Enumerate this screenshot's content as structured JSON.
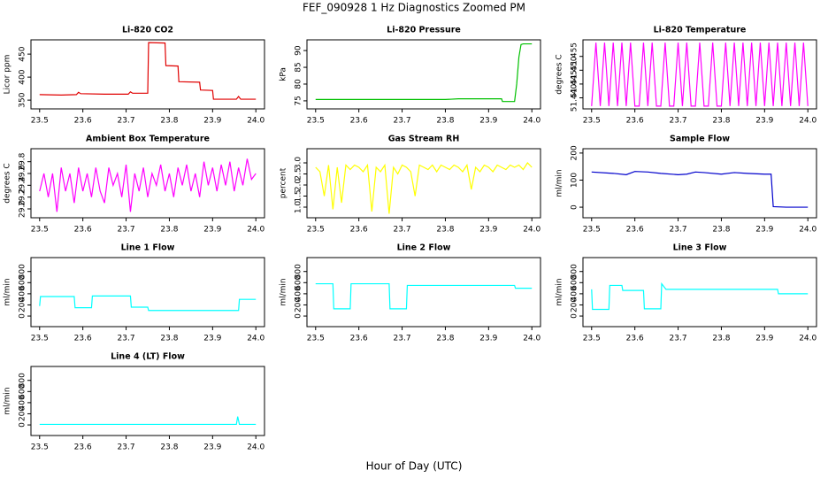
{
  "title": "FEF_090928  1 Hz Diagnostics Zoomed PM",
  "xlabel": "Hour of Day (UTC)",
  "chart_data": [
    {
      "type": "line",
      "title": "Li-820 CO2",
      "ylabel": "Licor ppm",
      "color": "#e00000",
      "x": [
        23.5,
        23.55,
        23.585,
        23.59,
        23.595,
        23.65,
        23.705,
        23.71,
        23.715,
        23.75,
        23.752,
        23.79,
        23.792,
        23.82,
        23.822,
        23.87,
        23.872,
        23.9,
        23.902,
        23.955,
        23.96,
        23.965,
        24.0
      ],
      "values": [
        362,
        361,
        362,
        367,
        364,
        363,
        363,
        368,
        365,
        365,
        475,
        474,
        425,
        424,
        390,
        389,
        372,
        371,
        352,
        352,
        358,
        352,
        352
      ],
      "xlim": [
        23.48,
        24.02
      ],
      "xticks": [
        23.5,
        23.6,
        23.7,
        23.8,
        23.9,
        {
          "value": 24,
          "label": "24.0"
        }
      ],
      "ylim": [
        331,
        481
      ],
      "yticks": [
        350,
        400,
        450
      ]
    },
    {
      "type": "line",
      "title": "Li-820 Pressure",
      "ylabel": "kPa",
      "color": "#00c000",
      "x": [
        23.5,
        23.6,
        23.7,
        23.8,
        23.83,
        23.93,
        23.932,
        23.96,
        23.965,
        23.97,
        23.975,
        23.98,
        24.0
      ],
      "values": [
        75.4,
        75.4,
        75.4,
        75.4,
        75.6,
        75.6,
        74.8,
        74.8,
        80,
        88,
        91.8,
        92,
        92
      ],
      "xlim": [
        23.48,
        24.02
      ],
      "xticks": [
        23.5,
        23.6,
        23.7,
        23.8,
        23.9,
        {
          "value": 24,
          "label": "24.0"
        }
      ],
      "ylim": [
        72.6,
        93.2
      ],
      "yticks": [
        75,
        80,
        85,
        90
      ]
    },
    {
      "type": "line",
      "title": "Li-820 Temperature",
      "ylabel": "degrees C",
      "color": "#ff00ff",
      "x": [
        23.5,
        23.51,
        23.52,
        23.53,
        23.54,
        23.55,
        23.56,
        23.57,
        23.58,
        23.59,
        23.6,
        23.61,
        23.62,
        23.63,
        23.64,
        23.65,
        23.66,
        23.67,
        23.68,
        23.69,
        23.7,
        23.71,
        23.72,
        23.73,
        23.74,
        23.75,
        23.76,
        23.77,
        23.78,
        23.79,
        23.8,
        23.81,
        23.82,
        23.83,
        23.84,
        23.85,
        23.86,
        23.87,
        23.88,
        23.89,
        23.9,
        23.91,
        23.92,
        23.93,
        23.94,
        23.95,
        23.96,
        23.97,
        23.98,
        23.99,
        24.0
      ],
      "values": [
        51.437,
        51.46,
        51.437,
        51.46,
        51.437,
        51.46,
        51.437,
        51.46,
        51.437,
        51.46,
        51.437,
        51.437,
        51.46,
        51.437,
        51.46,
        51.437,
        51.437,
        51.46,
        51.437,
        51.437,
        51.46,
        51.437,
        51.46,
        51.437,
        51.437,
        51.46,
        51.437,
        51.437,
        51.46,
        51.437,
        51.437,
        51.46,
        51.437,
        51.46,
        51.437,
        51.46,
        51.437,
        51.46,
        51.437,
        51.46,
        51.437,
        51.46,
        51.437,
        51.46,
        51.437,
        51.46,
        51.437,
        51.46,
        51.437,
        51.46,
        51.437
      ],
      "xlim": [
        23.48,
        24.02
      ],
      "xticks": [
        23.5,
        23.6,
        23.7,
        23.8,
        23.9,
        {
          "value": 24,
          "label": "24.0"
        }
      ],
      "ylim": [
        51.436,
        51.461
      ],
      "yticks": [
        {
          "value": 51.44,
          "label": "51.440"
        },
        {
          "value": 51.445,
          "label": "51.445"
        },
        {
          "value": 51.45,
          "label": "51.450"
        },
        {
          "value": 51.455,
          "label": "51.455"
        }
      ]
    },
    {
      "type": "line",
      "title": "Ambient Box Temperature",
      "ylabel": "degrees C",
      "color": "#ff00ff",
      "x": [
        23.5,
        23.51,
        23.52,
        23.53,
        23.54,
        23.55,
        23.56,
        23.57,
        23.58,
        23.59,
        23.6,
        23.61,
        23.62,
        23.63,
        23.64,
        23.65,
        23.66,
        23.67,
        23.68,
        23.69,
        23.7,
        23.71,
        23.72,
        23.73,
        23.74,
        23.75,
        23.76,
        23.77,
        23.78,
        23.79,
        23.8,
        23.81,
        23.82,
        23.83,
        23.84,
        23.85,
        23.86,
        23.87,
        23.88,
        23.89,
        23.9,
        23.91,
        23.92,
        23.93,
        23.94,
        23.95,
        23.96,
        23.97,
        23.98,
        23.99,
        24.0
      ],
      "values": [
        29.3,
        29.6,
        29.2,
        29.6,
        28.95,
        29.7,
        29.3,
        29.6,
        29.1,
        29.7,
        29.3,
        29.6,
        29.2,
        29.7,
        29.3,
        29.1,
        29.7,
        29.4,
        29.6,
        29.2,
        29.75,
        28.95,
        29.6,
        29.3,
        29.7,
        29.2,
        29.6,
        29.4,
        29.75,
        29.3,
        29.6,
        29.2,
        29.7,
        29.4,
        29.75,
        29.3,
        29.6,
        29.2,
        29.8,
        29.4,
        29.7,
        29.3,
        29.75,
        29.4,
        29.8,
        29.3,
        29.7,
        29.4,
        29.85,
        29.5,
        29.6
      ],
      "xlim": [
        23.48,
        24.02
      ],
      "xticks": [
        23.5,
        23.6,
        23.7,
        23.8,
        23.9,
        {
          "value": 24,
          "label": "24.0"
        }
      ],
      "ylim": [
        28.85,
        30.02
      ],
      "yticks": [
        {
          "value": 29,
          "label": "29.0"
        },
        29.2,
        29.4,
        29.6,
        29.8
      ]
    },
    {
      "type": "line",
      "title": "Gas Stream RH",
      "ylabel": "percent",
      "color": "#ffff00",
      "x": [
        23.5,
        23.51,
        23.52,
        23.53,
        23.54,
        23.55,
        23.56,
        23.57,
        23.58,
        23.59,
        23.6,
        23.61,
        23.62,
        23.63,
        23.64,
        23.65,
        23.66,
        23.67,
        23.68,
        23.69,
        23.7,
        23.71,
        23.72,
        23.73,
        23.74,
        23.75,
        23.76,
        23.77,
        23.78,
        23.79,
        23.8,
        23.81,
        23.82,
        23.83,
        23.84,
        23.85,
        23.86,
        23.87,
        23.88,
        23.89,
        23.9,
        23.91,
        23.92,
        23.93,
        23.94,
        23.95,
        23.96,
        23.97,
        23.98,
        23.99,
        24.0
      ],
      "values": [
        2.8,
        2.6,
        1.5,
        2.9,
        0.9,
        2.8,
        1.2,
        2.9,
        2.7,
        2.9,
        2.8,
        2.6,
        2.9,
        0.8,
        2.8,
        2.6,
        2.9,
        0.7,
        2.8,
        2.5,
        2.9,
        2.8,
        2.6,
        1.5,
        2.9,
        2.8,
        2.7,
        2.9,
        2.6,
        2.9,
        2.8,
        2.7,
        2.9,
        2.8,
        2.6,
        2.9,
        1.8,
        2.8,
        2.6,
        2.9,
        2.8,
        2.6,
        2.9,
        2.8,
        2.7,
        2.9,
        2.8,
        2.9,
        2.7,
        3.0,
        2.8
      ],
      "xlim": [
        23.48,
        24.02
      ],
      "xticks": [
        23.5,
        23.6,
        23.7,
        23.8,
        23.9,
        {
          "value": 24,
          "label": "24.0"
        }
      ],
      "ylim": [
        0.52,
        3.64
      ],
      "yticks": [
        {
          "value": 1,
          "label": "1.0"
        },
        1.5,
        {
          "value": 2,
          "label": "2.0"
        },
        2.5,
        {
          "value": 3,
          "label": "3.0"
        }
      ]
    },
    {
      "type": "line",
      "title": "Sample Flow",
      "ylabel": "ml/min",
      "color": "#0000cc",
      "x": [
        23.5,
        23.55,
        23.58,
        23.6,
        23.63,
        23.66,
        23.7,
        23.72,
        23.74,
        23.76,
        23.8,
        23.83,
        23.86,
        23.9,
        23.915,
        23.92,
        23.95,
        24.0
      ],
      "values": [
        130,
        125,
        120,
        132,
        130,
        125,
        120,
        122,
        130,
        128,
        122,
        128,
        125,
        122,
        122,
        2,
        0,
        0
      ],
      "xlim": [
        23.48,
        24.02
      ],
      "xticks": [
        23.5,
        23.6,
        23.7,
        23.8,
        23.9,
        {
          "value": 24,
          "label": "24.0"
        }
      ],
      "ylim": [
        -39,
        216
      ],
      "yticks": [
        0,
        100,
        200
      ]
    },
    {
      "type": "line",
      "title": "Line 1 Flow",
      "ylabel": "ml/min",
      "color": "#00ffff",
      "x": [
        23.5,
        23.502,
        23.58,
        23.582,
        23.62,
        23.622,
        23.71,
        23.712,
        23.75,
        23.752,
        23.96,
        23.962,
        24.0
      ],
      "values": [
        180,
        350,
        350,
        150,
        150,
        360,
        360,
        160,
        160,
        100,
        100,
        300,
        300
      ],
      "xlim": [
        23.48,
        24.02
      ],
      "xticks": [
        23.5,
        23.6,
        23.7,
        23.8,
        23.9,
        {
          "value": 24,
          "label": "24.0"
        }
      ],
      "ylim": [
        -190,
        1050
      ],
      "yticks": [
        0,
        200,
        400,
        600,
        800
      ]
    },
    {
      "type": "line",
      "title": "Line 2 Flow",
      "ylabel": "ml/min",
      "color": "#00ffff",
      "x": [
        23.5,
        23.54,
        23.542,
        23.58,
        23.582,
        23.67,
        23.672,
        23.71,
        23.712,
        23.96,
        23.962,
        24.0
      ],
      "values": [
        580,
        580,
        130,
        130,
        580,
        580,
        130,
        130,
        550,
        550,
        500,
        500
      ],
      "xlim": [
        23.48,
        24.02
      ],
      "xticks": [
        23.5,
        23.6,
        23.7,
        23.8,
        23.9,
        {
          "value": 24,
          "label": "24.0"
        }
      ],
      "ylim": [
        -190,
        1050
      ],
      "yticks": [
        0,
        200,
        400,
        600,
        800
      ]
    },
    {
      "type": "line",
      "title": "Line 3 Flow",
      "ylabel": "ml/min",
      "color": "#00ffff",
      "x": [
        23.5,
        23.502,
        23.54,
        23.542,
        23.57,
        23.572,
        23.62,
        23.622,
        23.66,
        23.662,
        23.67,
        23.672,
        23.93,
        23.932,
        24.0
      ],
      "values": [
        480,
        120,
        120,
        550,
        550,
        460,
        460,
        130,
        130,
        580,
        500,
        480,
        480,
        400,
        400
      ],
      "xlim": [
        23.48,
        24.02
      ],
      "xticks": [
        23.5,
        23.6,
        23.7,
        23.8,
        23.9,
        {
          "value": 24,
          "label": "24.0"
        }
      ],
      "ylim": [
        -190,
        1050
      ],
      "yticks": [
        0,
        200,
        400,
        600,
        800
      ]
    },
    {
      "type": "line",
      "title": "Line 4 (LT) Flow",
      "ylabel": "ml/min",
      "color": "#00ffff",
      "x": [
        23.5,
        23.7,
        23.955,
        23.958,
        23.962,
        24.0
      ],
      "values": [
        10,
        10,
        10,
        150,
        10,
        10
      ],
      "xlim": [
        23.48,
        24.02
      ],
      "xticks": [
        23.5,
        23.6,
        23.7,
        23.8,
        23.9,
        {
          "value": 24,
          "label": "24.0"
        }
      ],
      "ylim": [
        -190,
        1050
      ],
      "yticks": [
        0,
        200,
        400,
        600,
        800
      ]
    }
  ]
}
